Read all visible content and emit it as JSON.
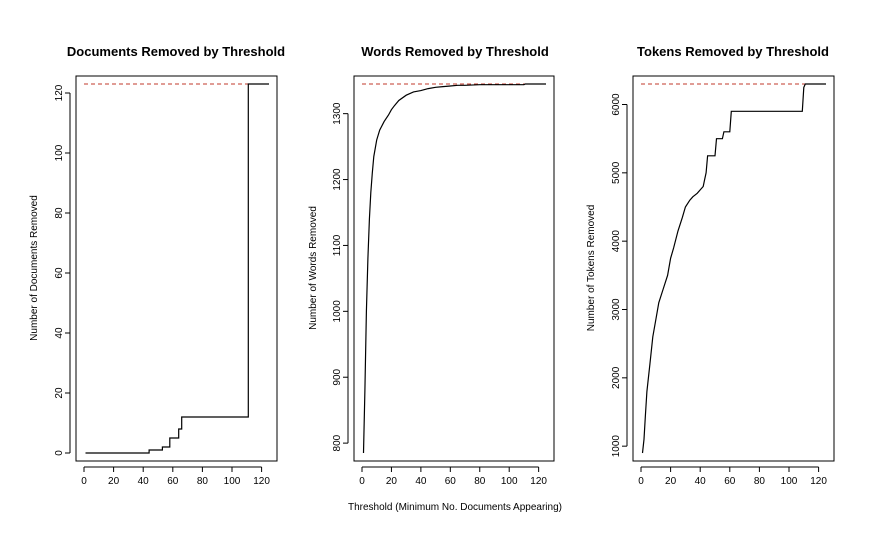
{
  "xlabel": "Threshold (Minimum No. Documents Appearing)",
  "chart_data": [
    {
      "type": "line",
      "title": "Documents Removed by Threshold",
      "xlabel": "",
      "ylabel": "Number of Documents Removed",
      "xlim": [
        0,
        125
      ],
      "ylim": [
        0,
        123
      ],
      "xticks": [
        0,
        20,
        40,
        60,
        80,
        100,
        120
      ],
      "yticks": [
        0,
        20,
        40,
        60,
        80,
        100,
        120
      ],
      "step": true,
      "reference_line": {
        "y": 123,
        "color": "#c0392b",
        "style": "dashed"
      },
      "series": [
        {
          "x": [
            1,
            43,
            44,
            52,
            53,
            57,
            58,
            63,
            64,
            66,
            110,
            111,
            125
          ],
          "y": [
            0,
            0,
            1,
            1,
            2,
            2,
            5,
            5,
            8,
            12,
            12,
            123,
            123
          ]
        }
      ]
    },
    {
      "type": "line",
      "title": "Words Removed by Threshold",
      "xlabel": "",
      "ylabel": "Number of Words Removed",
      "xlim": [
        0,
        125
      ],
      "ylim": [
        785,
        1345
      ],
      "xticks": [
        0,
        20,
        40,
        60,
        80,
        100,
        120
      ],
      "yticks": [
        800,
        900,
        1000,
        1100,
        1200,
        1300
      ],
      "step": false,
      "reference_line": {
        "y": 1345,
        "color": "#c0392b",
        "style": "dashed"
      },
      "series": [
        {
          "x": [
            1,
            2,
            3,
            4,
            5,
            6,
            7,
            8,
            10,
            12,
            15,
            18,
            20,
            22,
            25,
            30,
            35,
            40,
            45,
            50,
            55,
            60,
            65,
            70,
            80,
            90,
            100,
            110,
            111,
            125
          ],
          "y": [
            785,
            880,
            1000,
            1080,
            1140,
            1180,
            1210,
            1235,
            1260,
            1275,
            1288,
            1298,
            1306,
            1312,
            1320,
            1328,
            1333,
            1335,
            1338,
            1340,
            1341,
            1342,
            1343,
            1343,
            1344,
            1344,
            1344,
            1344,
            1345,
            1345
          ]
        }
      ]
    },
    {
      "type": "line",
      "title": "Tokens Removed by Threshold",
      "xlabel": "",
      "ylabel": "Number of Tokens Removed",
      "xlim": [
        0,
        125
      ],
      "ylim": [
        900,
        6300
      ],
      "xticks": [
        0,
        20,
        40,
        60,
        80,
        100,
        120
      ],
      "yticks": [
        1000,
        2000,
        3000,
        4000,
        5000,
        6000
      ],
      "step": false,
      "reference_line": {
        "y": 6300,
        "color": "#c0392b",
        "style": "dashed"
      },
      "series": [
        {
          "x": [
            1,
            2,
            3,
            4,
            6,
            8,
            10,
            12,
            15,
            18,
            20,
            22,
            25,
            28,
            30,
            33,
            35,
            38,
            40,
            42,
            43,
            44,
            45,
            47,
            50,
            51,
            55,
            56,
            60,
            61,
            65,
            66,
            70,
            80,
            90,
            100,
            109,
            110,
            111,
            125
          ],
          "y": [
            900,
            1100,
            1450,
            1800,
            2200,
            2600,
            2850,
            3100,
            3300,
            3500,
            3750,
            3900,
            4150,
            4350,
            4500,
            4600,
            4650,
            4700,
            4750,
            4800,
            4900,
            5000,
            5250,
            5250,
            5250,
            5500,
            5500,
            5600,
            5600,
            5900,
            5900,
            5900,
            5900,
            5900,
            5900,
            5900,
            5900,
            6250,
            6300,
            6300
          ]
        }
      ]
    }
  ]
}
